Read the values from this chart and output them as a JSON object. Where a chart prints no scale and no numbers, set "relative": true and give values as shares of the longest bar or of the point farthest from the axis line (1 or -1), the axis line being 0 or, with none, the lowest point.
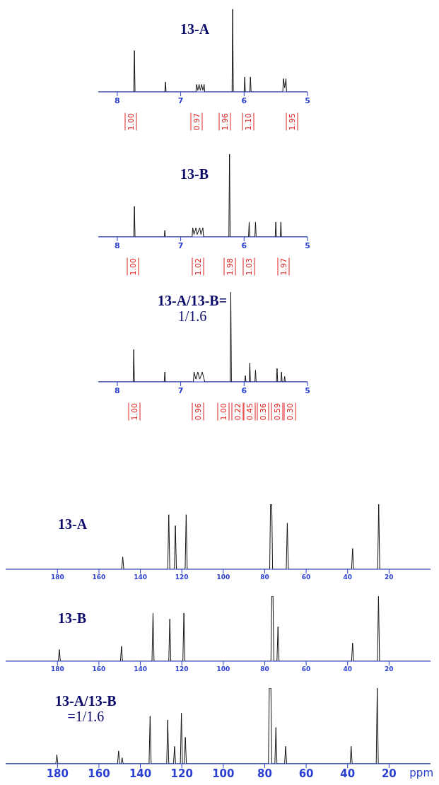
{
  "chart_data": [
    {
      "type": "line",
      "title": "13-A",
      "relative": true,
      "xlim": [
        8.3,
        5.0
      ],
      "xticks": [
        8,
        7,
        6,
        5
      ],
      "series": [
        {
          "color": "#111111",
          "x": [
            8.3,
            7.74,
            7.73,
            7.72,
            7.25,
            7.24,
            7.23,
            6.76,
            6.75,
            6.73,
            6.71,
            6.69,
            6.67,
            6.65,
            6.63,
            6.62,
            6.19,
            6.18,
            6.17,
            6.0,
            5.99,
            5.98,
            5.91,
            5.9,
            5.89,
            5.39,
            5.38,
            5.36,
            5.34,
            5.33,
            5.0
          ],
          "values": [
            0,
            0,
            0.5,
            0,
            0,
            0.12,
            0,
            0,
            0.09,
            0.02,
            0.09,
            0.02,
            0.09,
            0.02,
            0.09,
            0,
            0,
            1,
            0,
            0,
            0.18,
            0,
            0,
            0.18,
            0,
            0,
            0.16,
            0.05,
            0.16,
            0,
            0
          ]
        }
      ],
      "annotations": [
        "1.00",
        "0.97",
        "1.96",
        "1.10",
        "1.95"
      ]
    },
    {
      "type": "line",
      "title": "13-B",
      "relative": true,
      "xlim": [
        8.3,
        5.0
      ],
      "xticks": [
        8,
        7,
        6,
        5
      ],
      "series": [
        {
          "color": "#111111",
          "x": [
            8.3,
            7.74,
            7.73,
            7.72,
            7.26,
            7.25,
            7.24,
            6.82,
            6.81,
            6.79,
            6.76,
            6.74,
            6.7,
            6.68,
            6.65,
            6.64,
            6.24,
            6.23,
            6.22,
            5.93,
            5.92,
            5.91,
            5.83,
            5.82,
            5.81,
            5.51,
            5.5,
            5.49,
            5.43,
            5.42,
            5.41,
            5.0
          ],
          "values": [
            0,
            0,
            0.37,
            0,
            0,
            0.08,
            0,
            0,
            0.11,
            0.03,
            0.11,
            0.03,
            0.11,
            0.03,
            0.11,
            0,
            0,
            1,
            0,
            0,
            0.18,
            0,
            0,
            0.18,
            0,
            0,
            0.18,
            0,
            0,
            0.18,
            0,
            0
          ]
        }
      ],
      "annotations": [
        "1.00",
        "1.02",
        "1.98",
        "1.03",
        "1.97"
      ]
    },
    {
      "type": "line",
      "title": "13-A/13-B=",
      "subtitle": "1/1.6",
      "relative": true,
      "xlim": [
        8.3,
        5.0
      ],
      "xticks": [
        8,
        7,
        6,
        5
      ],
      "series": [
        {
          "color": "#111111",
          "x": [
            8.3,
            7.75,
            7.74,
            7.73,
            7.26,
            7.25,
            7.24,
            6.8,
            6.79,
            6.76,
            6.73,
            6.7,
            6.66,
            6.62,
            6.22,
            6.21,
            6.2,
            5.99,
            5.98,
            5.97,
            5.92,
            5.91,
            5.9,
            5.83,
            5.82,
            5.81,
            5.49,
            5.48,
            5.47,
            5.42,
            5.41,
            5.4,
            5.37,
            5.36,
            5.35,
            5.0
          ],
          "values": [
            0,
            0,
            0.36,
            0,
            0,
            0.11,
            0,
            0,
            0.11,
            0.03,
            0.11,
            0.03,
            0.11,
            0,
            0,
            1,
            0,
            0,
            0.07,
            0,
            0,
            0.21,
            0,
            0,
            0.13,
            0,
            0,
            0.15,
            0,
            0,
            0.11,
            0,
            0,
            0.06,
            0,
            0
          ]
        }
      ],
      "annotations": [
        "1.00",
        "0.96",
        "1.00",
        "0.22",
        "0.45",
        "0.36",
        "0.59",
        "0.30"
      ]
    },
    {
      "type": "line",
      "title": "13-A",
      "relative": true,
      "xlim": [
        205,
        0
      ],
      "xticks": [
        180,
        160,
        140,
        120,
        100,
        80,
        60,
        40,
        20
      ],
      "series": [
        {
          "color": "#111111",
          "x": [
            205,
            149,
            148.5,
            148,
            126.8,
            126.3,
            125.8,
            123.6,
            123.1,
            122.6,
            118.4,
            117.9,
            117.4,
            77.6,
            77.2,
            76.9,
            76.6,
            76.2,
            69.6,
            69.1,
            68.6,
            38.1,
            37.6,
            37.1,
            25.5,
            25.0,
            24.5,
            0
          ],
          "values": [
            0,
            0,
            0.19,
            0,
            0,
            0.84,
            0,
            0,
            0.67,
            0,
            0,
            0.84,
            0,
            0,
            1,
            1,
            1,
            0,
            0,
            0.71,
            0,
            0,
            0.32,
            0,
            0,
            1,
            0,
            0
          ]
        }
      ]
    },
    {
      "type": "line",
      "title": "13-B",
      "relative": true,
      "xlim": [
        205,
        0
      ],
      "xticks": [
        180,
        160,
        140,
        120,
        100,
        80,
        60,
        40,
        20
      ],
      "series": [
        {
          "color": "#111111",
          "x": [
            205,
            179.6,
            179.1,
            178.6,
            149.6,
            149.1,
            148.6,
            134.4,
            133.9,
            133.4,
            126.3,
            125.8,
            125.3,
            119.5,
            119.0,
            118.5,
            77.0,
            76.6,
            76.3,
            76.0,
            75.6,
            74.1,
            73.6,
            73.1,
            38.1,
            37.6,
            37.1,
            25.6,
            25.1,
            24.6,
            0
          ],
          "values": [
            0,
            0,
            0.18,
            0,
            0,
            0.23,
            0,
            0,
            0.74,
            0,
            0,
            0.65,
            0,
            0,
            0.74,
            0,
            0,
            1,
            1,
            1,
            0,
            0,
            0.53,
            0,
            0,
            0.28,
            0,
            0,
            1,
            0,
            0
          ]
        }
      ]
    },
    {
      "type": "line",
      "title": "13-A/13-B",
      "subtitle": "=1/1.6",
      "xlabel": "ppm",
      "relative": true,
      "xlim": [
        205,
        0
      ],
      "xticks": [
        180,
        160,
        140,
        120,
        100,
        80,
        60,
        40,
        20
      ],
      "series": [
        {
          "color": "#111111",
          "x": [
            205,
            180.8,
            180.3,
            179.8,
            151,
            150.5,
            150,
            149.3,
            148.8,
            148.3,
            135.8,
            135.3,
            134.8,
            127.3,
            126.8,
            126.3,
            124,
            123.5,
            123,
            120.7,
            120.2,
            119.7,
            118.8,
            118.3,
            117.8,
            78.2,
            77.8,
            77.4,
            77.0,
            76.6,
            75.1,
            74.6,
            74.1,
            70.4,
            69.9,
            69.4,
            38.8,
            38.3,
            37.8,
            26.2,
            25.7,
            25.2,
            0
          ],
          "values": [
            0,
            0,
            0.12,
            0,
            0,
            0.17,
            0,
            0,
            0.08,
            0,
            0,
            0.63,
            0,
            0,
            0.58,
            0,
            0,
            0.23,
            0,
            0,
            0.67,
            0,
            0,
            0.35,
            0,
            0,
            1,
            1,
            1,
            0,
            0,
            0.48,
            0,
            0,
            0.23,
            0,
            0,
            0.23,
            0,
            0,
            1,
            0,
            0
          ]
        }
      ]
    }
  ]
}
